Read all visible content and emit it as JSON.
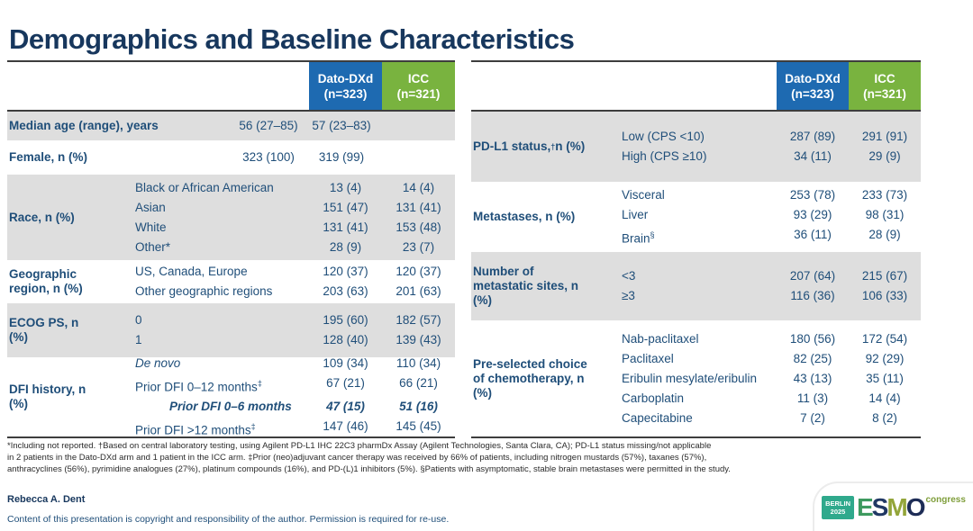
{
  "slide": {
    "title": "Demographics and Baseline Characteristics",
    "presenter": "Rebecca A. Dent",
    "copyright": "Content of this presentation is copyright and responsibility of the author. Permission is required for re-use.",
    "footnote_lines": [
      "*Including not reported. †Based on central laboratory testing, using Agilent PD-L1 IHC 22C3 pharmDx Assay (Agilent Technologies, Santa Clara, CA); PD-L1 status missing/not applicable",
      "in 2 patients in the Dato-DXd arm and 1 patient in the ICC arm. ‡Prior (neo)adjuvant cancer therapy was received by 66% of patients, including nitrogen mustards (57%), taxanes (57%),",
      "anthracyclines (56%), pyrimidine analogues (27%), platinum compounds (16%), and PD-(L)1 inhibitors (5%). §Patients with asymptomatic, stable brain metastases were permitted in the study."
    ]
  },
  "colors": {
    "arm1_bg": "#1e6ab1",
    "arm2_bg": "#79b33f",
    "row_shade": "#dedede",
    "text_navy": "#1f4e79"
  },
  "arms": {
    "arm1": {
      "name": "Dato-DXd",
      "n": "(n=323)"
    },
    "arm2": {
      "name": "ICC",
      "n": "(n=321)"
    }
  },
  "left_table": {
    "rows": [
      {
        "label": "Median age (range), years",
        "shaded": true,
        "items": [
          {
            "name": "",
            "v1": "56 (27–85)",
            "v2": "57 (23–83)"
          }
        ]
      },
      {
        "label": "Female, n (%)",
        "shaded": false,
        "items": [
          {
            "name": "",
            "v1": "323 (100)",
            "v2": "319 (99)"
          }
        ]
      },
      {
        "label": "Race, n (%)",
        "shaded": true,
        "items": [
          {
            "name": "Black or African American",
            "v1": "13 (4)",
            "v2": "14 (4)"
          },
          {
            "name": "Asian",
            "v1": "151 (47)",
            "v2": "131 (41)"
          },
          {
            "name": "White",
            "v1": "131 (41)",
            "v2": "153 (48)"
          },
          {
            "name": "Other*",
            "v1": "28 (9)",
            "v2": "23 (7)"
          }
        ]
      },
      {
        "label": "Geographic region, n (%)",
        "shaded": false,
        "items": [
          {
            "name": "US, Canada, Europe",
            "v1": "120 (37)",
            "v2": "120 (37)"
          },
          {
            "name": "Other geographic regions",
            "v1": "203 (63)",
            "v2": "201 (63)"
          }
        ]
      },
      {
        "label": "ECOG PS, n (%)",
        "shaded": true,
        "items": [
          {
            "name": "0",
            "v1": "195 (60)",
            "v2": "182 (57)"
          },
          {
            "name": "1",
            "v1": "128 (40)",
            "v2": "139 (43)"
          }
        ]
      },
      {
        "label": "DFI history, n (%)",
        "shaded": false,
        "items": [
          {
            "name": "De novo",
            "style": "italic",
            "v1": "109 (34)",
            "v2": "110 (34)"
          },
          {
            "name": "Prior DFI 0–12 months",
            "sup": "‡",
            "v1": "67 (21)",
            "v2": "66 (21)"
          },
          {
            "name": "Prior DFI 0–6 months",
            "style": "emph",
            "v1": "47 (15)",
            "v2": "51 (16)"
          },
          {
            "name": "Prior DFI >12 months",
            "sup": "‡",
            "v1": "147 (46)",
            "v2": "145 (45)"
          }
        ]
      }
    ]
  },
  "right_table": {
    "rows": [
      {
        "label": "PD-L1 status,",
        "label_sup": "†",
        "label_post": " n (%)",
        "shaded": true,
        "items": [
          {
            "name": "Low (CPS <10)",
            "v1": "287 (89)",
            "v2": "291 (91)"
          },
          {
            "name": "High (CPS ≥10)",
            "v1": "34 (11)",
            "v2": "29 (9)"
          }
        ]
      },
      {
        "label": "Metastases, n (%)",
        "shaded": false,
        "items": [
          {
            "name": "Visceral",
            "v1": "253 (78)",
            "v2": "233 (73)"
          },
          {
            "name": "Liver",
            "v1": "93 (29)",
            "v2": "98 (31)"
          },
          {
            "name": "Brain",
            "sup": "§",
            "v1": "36 (11)",
            "v2": "28 (9)"
          }
        ]
      },
      {
        "label": "Number of metastatic sites, n (%)",
        "shaded": true,
        "items": [
          {
            "name": "<3",
            "v1": "207 (64)",
            "v2": "215 (67)"
          },
          {
            "name": "≥3",
            "v1": "116 (36)",
            "v2": "106 (33)"
          }
        ]
      },
      {
        "label": "Pre-selected choice of chemotherapy, n (%)",
        "shaded": false,
        "items": [
          {
            "name": "Nab-paclitaxel",
            "v1": "180 (56)",
            "v2": "172 (54)"
          },
          {
            "name": "Paclitaxel",
            "v1": "82 (25)",
            "v2": "92 (29)"
          },
          {
            "name": "Eribulin mesylate/eribulin",
            "v1": "43 (13)",
            "v2": "35 (11)"
          },
          {
            "name": "Carboplatin",
            "v1": "11 (3)",
            "v2": "14 (4)"
          },
          {
            "name": "Capecitabine",
            "v1": "7 (2)",
            "v2": "8 (2)"
          }
        ]
      }
    ]
  },
  "logo": {
    "city": "BERLIN",
    "year": "2025",
    "letters": [
      "E",
      "S",
      "M",
      "O"
    ],
    "congress": "congress"
  }
}
